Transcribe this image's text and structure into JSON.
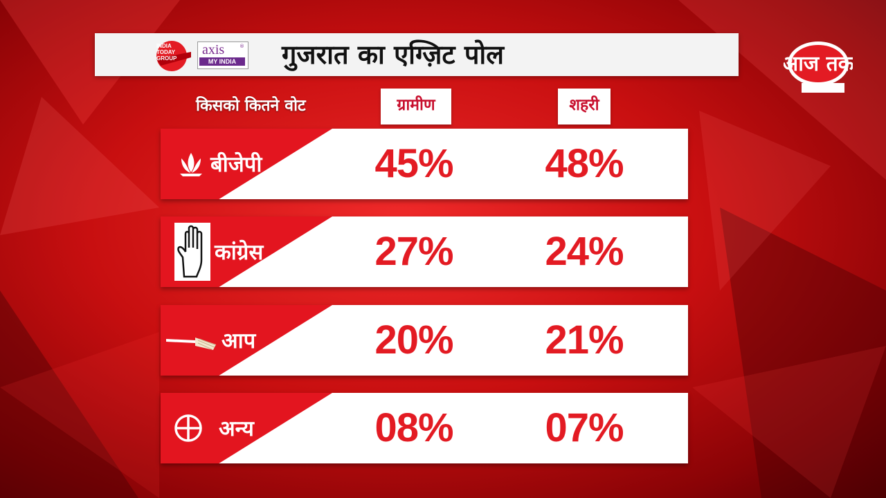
{
  "header": {
    "title": "गुजरात का एग्ज़िट पोल",
    "logo_india_today": "INDIA TODAY GROUP",
    "logo_axis": "axis",
    "logo_axis_band": "MY INDIA",
    "channel_logo": "आज तक"
  },
  "chart_data": {
    "type": "table",
    "title": "गुजरात का एग्ज़िट पोल",
    "row_header_label": "किसको कितने वोट",
    "columns": [
      "ग्रामीण",
      "शहरी"
    ],
    "rows": [
      {
        "party": "बीजेपी",
        "icon": "lotus-icon",
        "values": [
          "45%",
          "48%"
        ]
      },
      {
        "party": "कांग्रेस",
        "icon": "hand-icon",
        "values": [
          "27%",
          "24%"
        ]
      },
      {
        "party": "आप",
        "icon": "broom-icon",
        "values": [
          "20%",
          "21%"
        ]
      },
      {
        "party": "अन्य",
        "icon": "ballot-cross-icon",
        "values": [
          "08%",
          "07%"
        ]
      }
    ]
  },
  "colors": {
    "accent_red": "#e3151f",
    "value_red": "#e31b23",
    "bar_white": "#ffffff"
  }
}
